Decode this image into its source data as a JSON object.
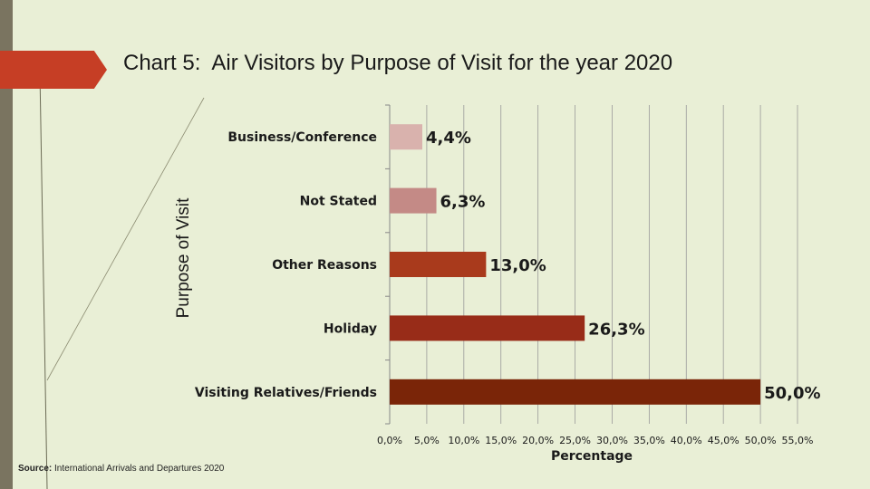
{
  "slide": {
    "title": "Chart 5:  Air Visitors by Purpose of Visit for the year 2020",
    "source_label": "Source:",
    "source_text": "International Arrivals and Departures 2020"
  },
  "colors": {
    "background": "#e9efd6",
    "accent": "#c63e25"
  },
  "chart_data": {
    "type": "bar",
    "orientation": "horizontal",
    "categories": [
      "Business/Conference",
      "Not Stated",
      "Other Reasons",
      "Holiday",
      "Visiting Relatives/Friends"
    ],
    "values": [
      4.4,
      6.3,
      13.0,
      26.3,
      50.0
    ],
    "value_labels": [
      "4,4%",
      "6,3%",
      "13,0%",
      "26,3%",
      "50,0%"
    ],
    "bar_colors": [
      "#d9b2ad",
      "#c48a86",
      "#a93a1c",
      "#982c18",
      "#7a2508"
    ],
    "xlabel": "Percentage",
    "ylabel": "Purpose of Visit",
    "xlim": [
      0,
      55
    ],
    "x_ticks": [
      "0,0%",
      "5,0%",
      "10,0%",
      "15,0%",
      "20,0%",
      "25,0%",
      "30,0%",
      "35,0%",
      "40,0%",
      "45,0%",
      "50,0%",
      "55,0%"
    ],
    "grid": true
  }
}
